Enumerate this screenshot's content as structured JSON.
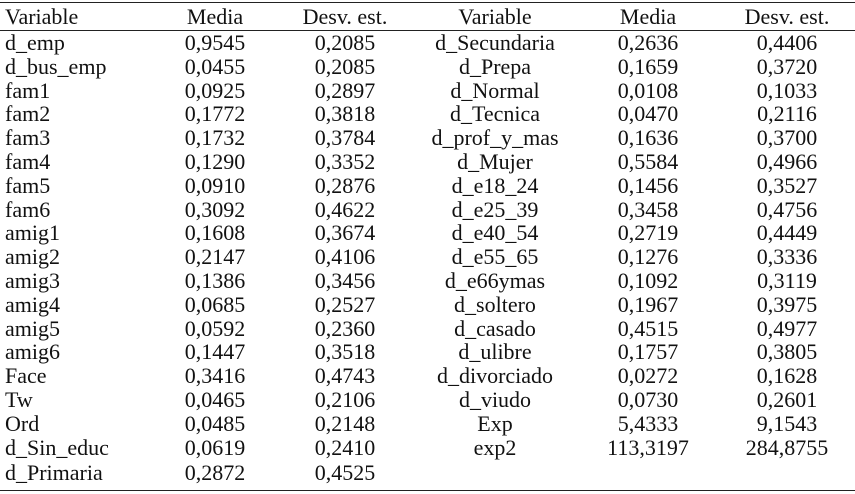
{
  "table": {
    "header": [
      "Variable",
      "Media",
      "Desv. est.",
      "Variable",
      "Media",
      "Desv. est."
    ],
    "rows": [
      [
        "d_emp",
        "0,9545",
        "0,2085",
        "d_Secundaria",
        "0,2636",
        "0,4406"
      ],
      [
        "d_bus_emp",
        "0,0455",
        "0,2085",
        "d_Prepa",
        "0,1659",
        "0,3720"
      ],
      [
        "fam1",
        "0,0925",
        "0,2897",
        "d_Normal",
        "0,0108",
        "0,1033"
      ],
      [
        "fam2",
        "0,1772",
        "0,3818",
        "d_Tecnica",
        "0,0470",
        "0,2116"
      ],
      [
        "fam3",
        "0,1732",
        "0,3784",
        "d_prof_y_mas",
        "0,1636",
        "0,3700"
      ],
      [
        "fam4",
        "0,1290",
        "0,3352",
        "d_Mujer",
        "0,5584",
        "0,4966"
      ],
      [
        "fam5",
        "0,0910",
        "0,2876",
        "d_e18_24",
        "0,1456",
        "0,3527"
      ],
      [
        "fam6",
        "0,3092",
        "0,4622",
        "d_e25_39",
        "0,3458",
        "0,4756"
      ],
      [
        "amig1",
        "0,1608",
        "0,3674",
        "d_e40_54",
        "0,2719",
        "0,4449"
      ],
      [
        "amig2",
        "0,2147",
        "0,4106",
        "d_e55_65",
        "0,1276",
        "0,3336"
      ],
      [
        "amig3",
        "0,1386",
        "0,3456",
        "d_e66ymas",
        "0,1092",
        "0,3119"
      ],
      [
        "amig4",
        "0,0685",
        "0,2527",
        "d_soltero",
        "0,1967",
        "0,3975"
      ],
      [
        "amig5",
        "0,0592",
        "0,2360",
        "d_casado",
        "0,4515",
        "0,4977"
      ],
      [
        "amig6",
        "0,1447",
        "0,3518",
        "d_ulibre",
        "0,1757",
        "0,3805"
      ],
      [
        "Face",
        "0,3416",
        "0,4743",
        "d_divorciado",
        "0,0272",
        "0,1628"
      ],
      [
        "Tw",
        "0,0465",
        "0,2106",
        "d_viudo",
        "0,0730",
        "0,2601"
      ],
      [
        "Ord",
        "0,0485",
        "0,2148",
        "Exp",
        "5,4333",
        "9,1543"
      ],
      [
        "d_Sin_educ",
        "0,0619",
        "0,2410",
        "exp2",
        "113,3197",
        "284,8755"
      ],
      [
        "d_Primaria",
        "0,2872",
        "0,4525"
      ]
    ]
  }
}
